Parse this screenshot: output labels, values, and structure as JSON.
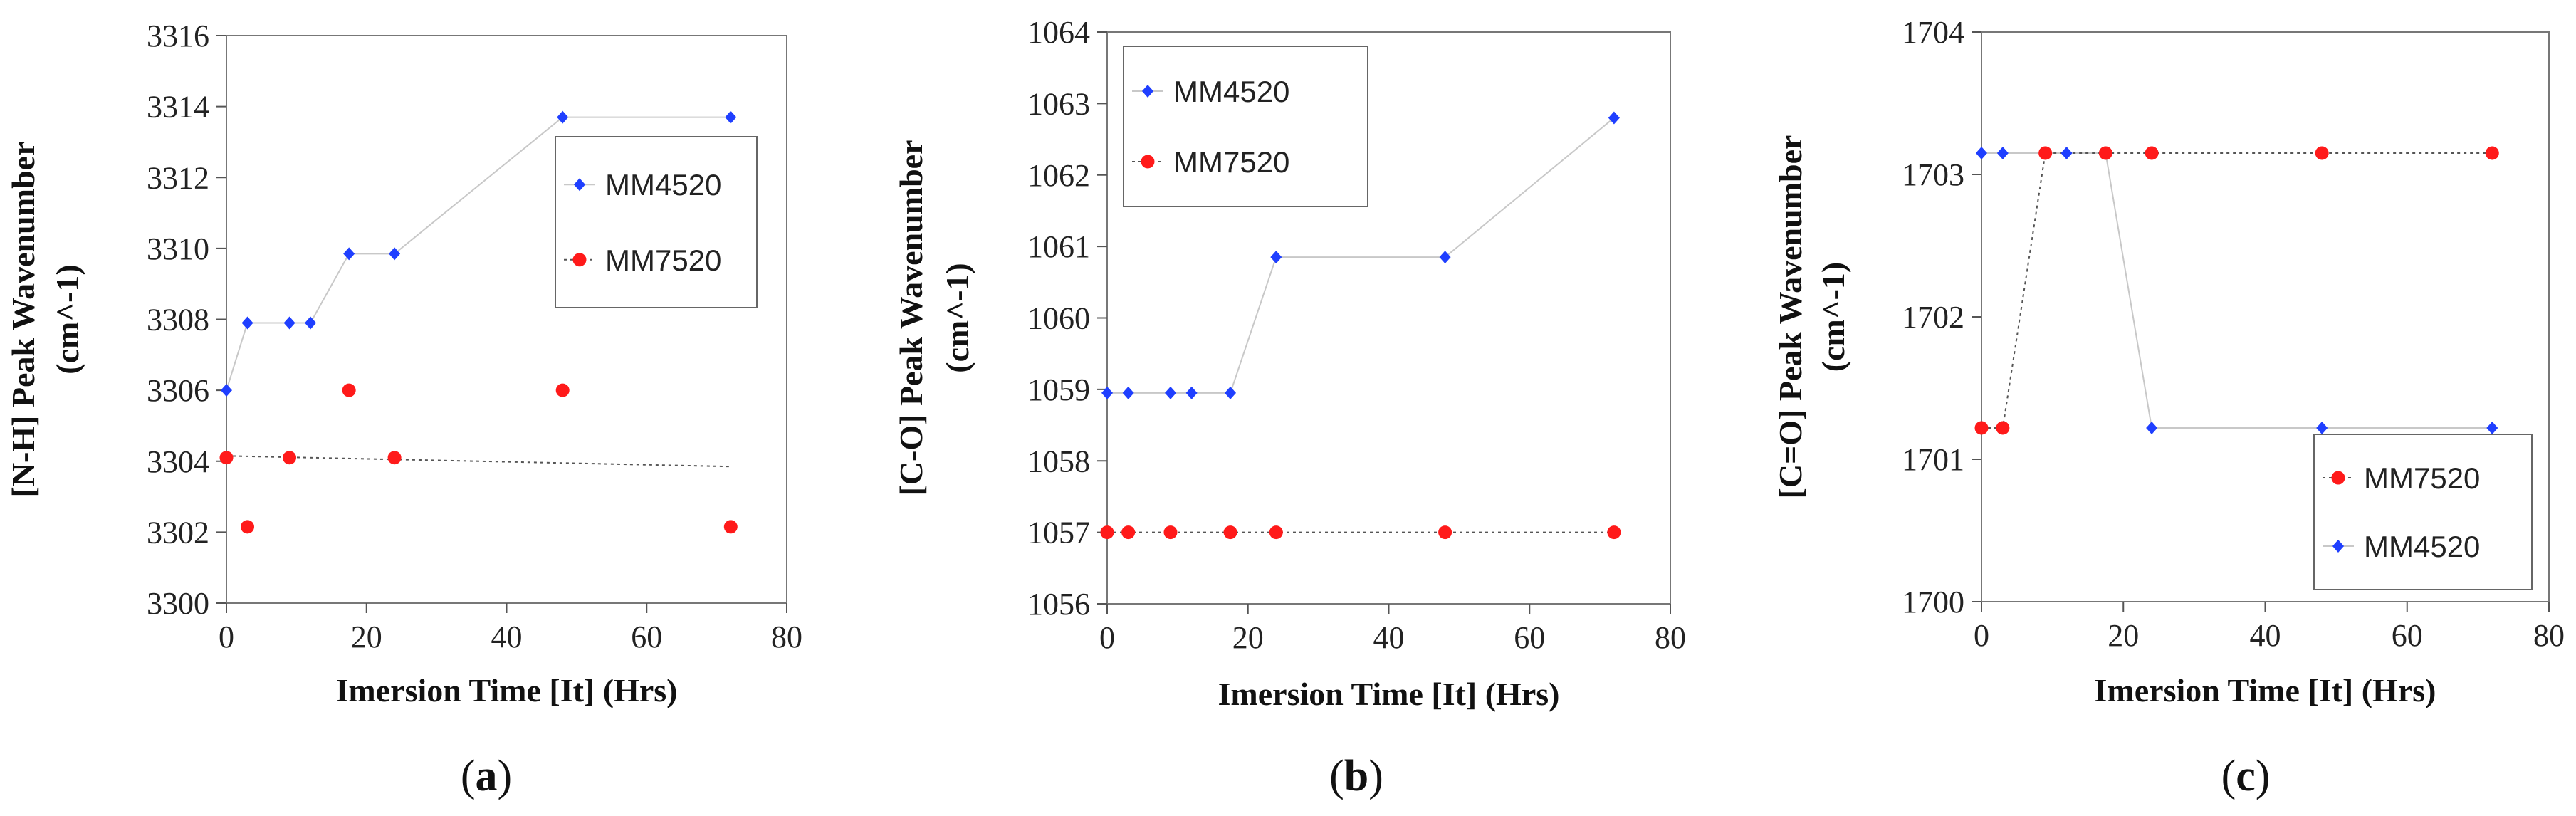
{
  "chart_data": [
    {
      "type": "scatter",
      "panel_label": "(a)",
      "panel_letter": "a",
      "xlabel": "Imersion Time [It] (Hrs)",
      "ylabel": "[N-H] Peak Wavenumber",
      "ylabel2": "(cm^-1)",
      "xlim": [
        0,
        80
      ],
      "ylim": [
        3300,
        3316
      ],
      "xticks": [
        "0",
        "20",
        "40",
        "60",
        "80"
      ],
      "yticks": [
        "3300",
        "3302",
        "3304",
        "3306",
        "3308",
        "3310",
        "3312",
        "3314",
        "3316"
      ],
      "legend_position": "right",
      "legend_order": [
        "MM4520",
        "MM7520"
      ],
      "series": [
        {
          "name": "MM4520",
          "color": "#1f3fff",
          "marker": "diamond",
          "x": [
            0,
            3,
            9,
            12,
            17.5,
            24,
            48,
            72
          ],
          "y": [
            3306.0,
            3307.9,
            3307.9,
            3307.9,
            3309.85,
            3309.85,
            3313.7,
            3313.7
          ],
          "connect": "step-line"
        },
        {
          "name": "MM7520",
          "color": "#ff1a1a",
          "marker": "circle",
          "x": [
            0,
            3,
            9,
            17.5,
            24,
            48,
            72
          ],
          "y": [
            3304.1,
            3302.15,
            3304.1,
            3306.0,
            3304.1,
            3306.0,
            3302.15
          ],
          "trendline": {
            "x": [
              0,
              72
            ],
            "y": [
              3304.15,
              3303.85
            ]
          }
        }
      ]
    },
    {
      "type": "scatter",
      "panel_label": "(b)",
      "panel_letter": "b",
      "xlabel": "Imersion Time [It] (Hrs)",
      "ylabel": "[C-O] Peak Wavenumber",
      "ylabel2": "(cm^-1)",
      "xlim": [
        0,
        80
      ],
      "ylim": [
        1056,
        1064
      ],
      "xticks": [
        "0",
        "20",
        "40",
        "60",
        "80"
      ],
      "yticks": [
        "1056",
        "1057",
        "1058",
        "1059",
        "1060",
        "1061",
        "1062",
        "1063",
        "1064"
      ],
      "legend_position": "top-left",
      "legend_order": [
        "MM4520",
        "MM7520"
      ],
      "series": [
        {
          "name": "MM4520",
          "color": "#1f3fff",
          "marker": "diamond",
          "x": [
            0,
            3,
            9,
            12,
            17.5,
            24,
            48,
            72
          ],
          "y": [
            1058.95,
            1058.95,
            1058.95,
            1058.95,
            1058.95,
            1060.85,
            1060.85,
            1062.8
          ],
          "connect": "line"
        },
        {
          "name": "MM7520",
          "color": "#ff1a1a",
          "marker": "circle",
          "x": [
            0,
            3,
            9,
            17.5,
            24,
            48,
            72
          ],
          "y": [
            1057,
            1057,
            1057,
            1057,
            1057,
            1057,
            1057
          ],
          "connect": "dotted"
        }
      ]
    },
    {
      "type": "scatter",
      "panel_label": "(c)",
      "panel_letter": "c",
      "xlabel": "Imersion Time [It] (Hrs)",
      "ylabel": "[C=O]  Peak Wavenumber",
      "ylabel2": "(cm^-1)",
      "xlim": [
        0,
        80
      ],
      "ylim": [
        1700,
        1704
      ],
      "xticks": [
        "0",
        "20",
        "40",
        "60",
        "80"
      ],
      "yticks": [
        "1700",
        "1701",
        "1702",
        "1703",
        "1704"
      ],
      "legend_position": "bottom-right",
      "legend_order": [
        "MM7520",
        "MM4520"
      ],
      "series": [
        {
          "name": "MM4520",
          "color": "#1f3fff",
          "marker": "diamond",
          "x": [
            0,
            3,
            9,
            12,
            17.5,
            24,
            48,
            72
          ],
          "y": [
            1703.15,
            1703.15,
            1703.15,
            1703.15,
            1703.15,
            1701.22,
            1701.22,
            1701.22
          ],
          "connect": "line"
        },
        {
          "name": "MM7520",
          "color": "#ff1a1a",
          "marker": "circle",
          "x": [
            0,
            3,
            9,
            17.5,
            24,
            48,
            72
          ],
          "y": [
            1701.22,
            1701.22,
            1703.15,
            1703.15,
            1703.15,
            1703.15,
            1703.15
          ],
          "connect": "dotted"
        }
      ]
    }
  ]
}
